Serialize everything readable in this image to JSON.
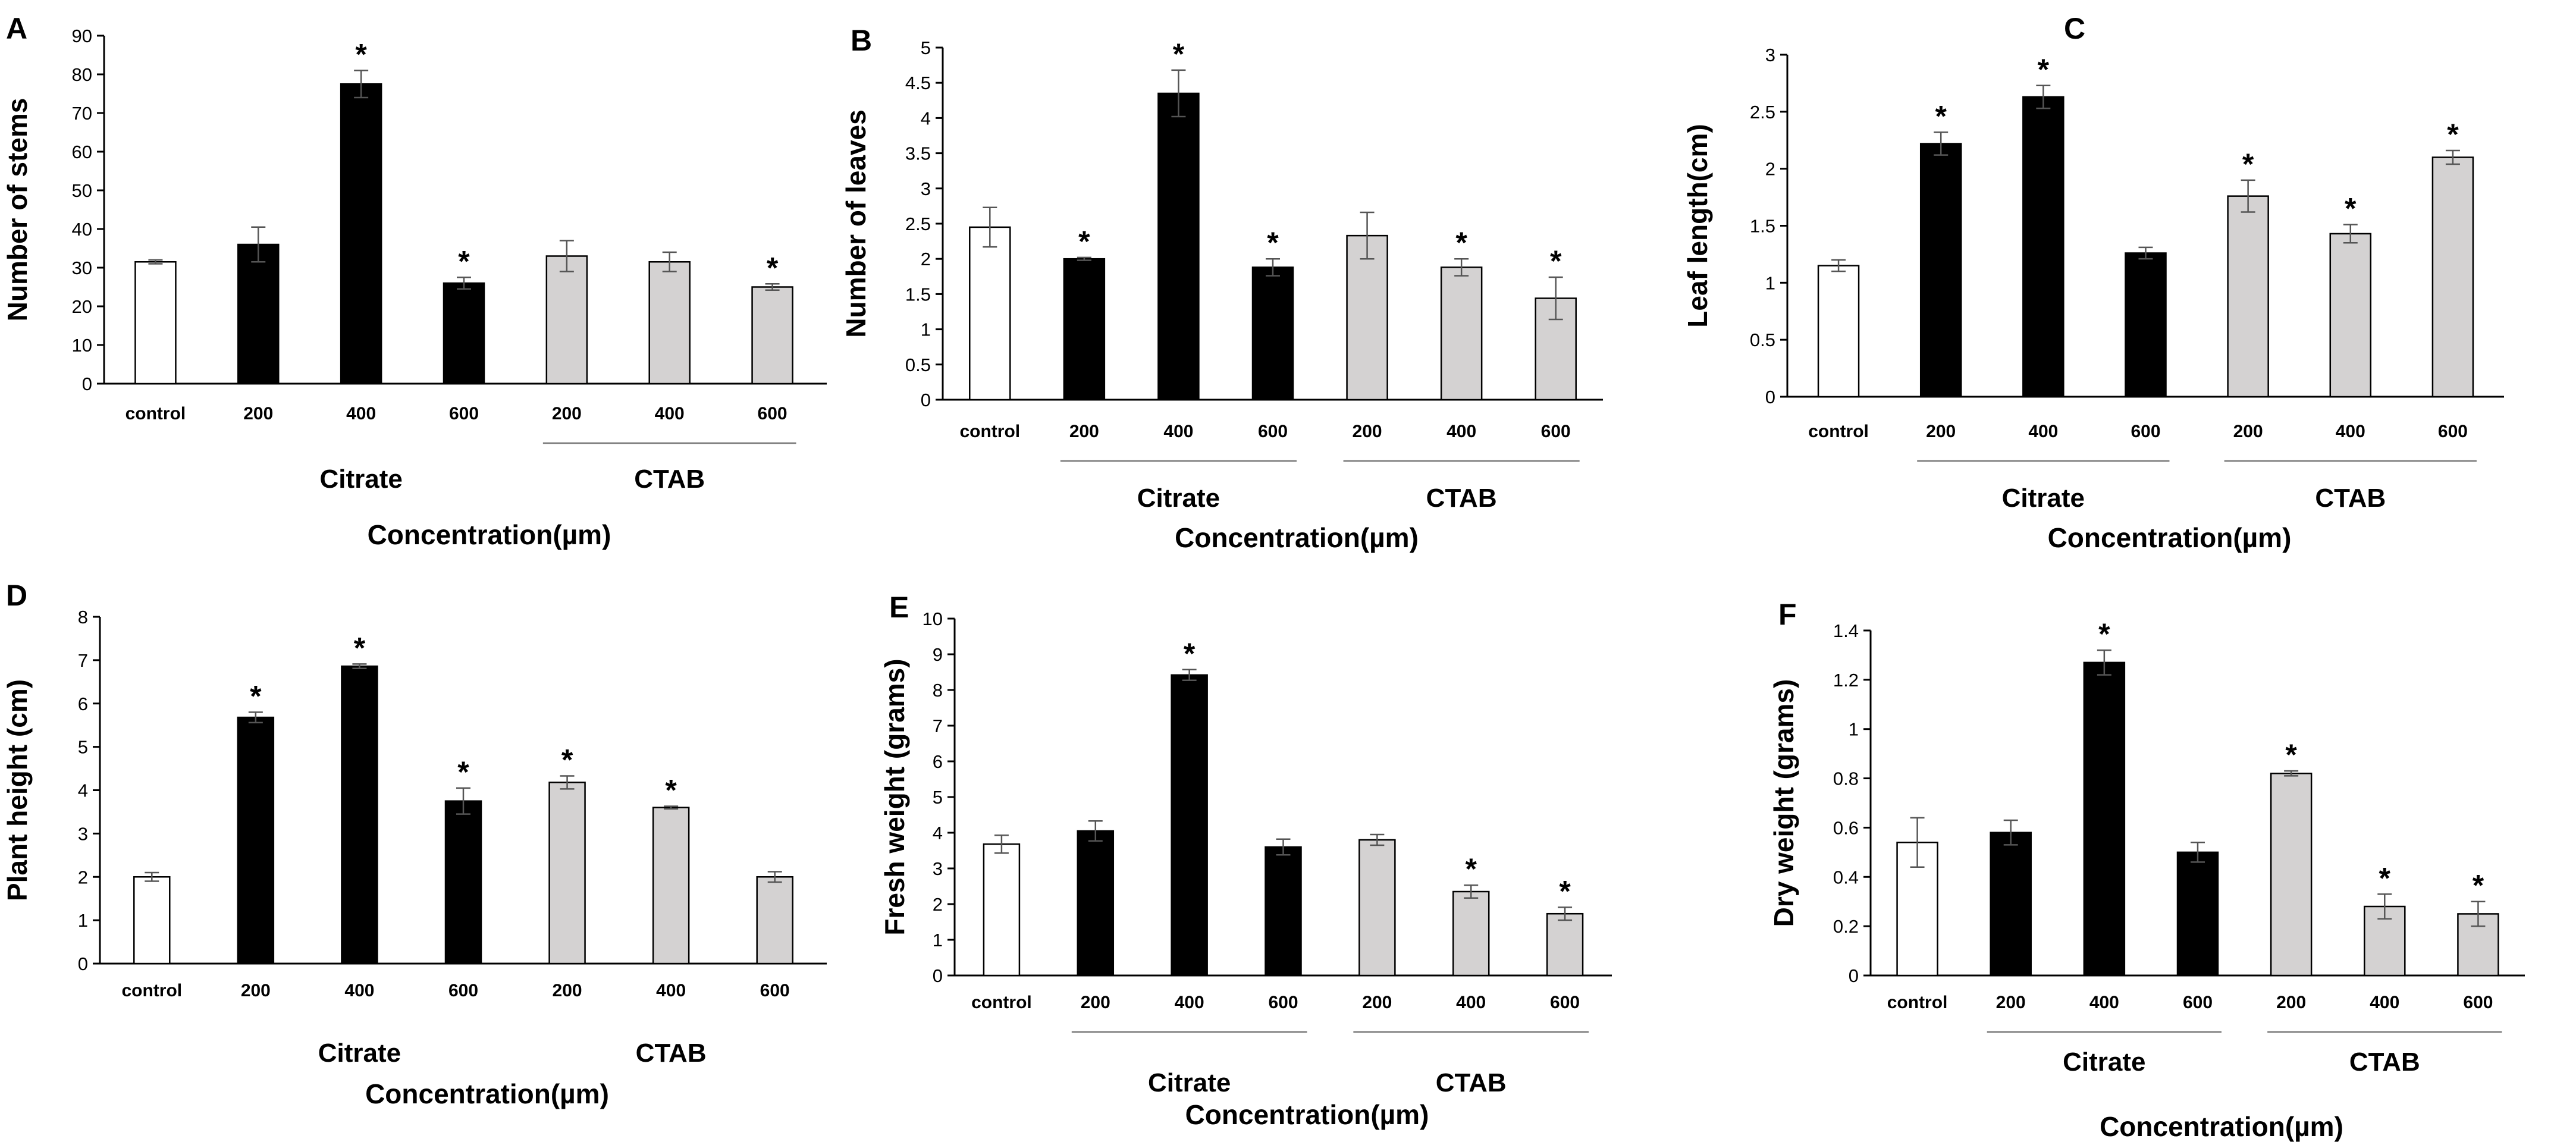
{
  "figure": {
    "colors": {
      "control": "#ffffff",
      "citrate": "#000000",
      "ctab": "#d4d2d2"
    },
    "group_labels": {
      "citrate": "Citrate",
      "ctab": "CTAB"
    }
  },
  "chart_data": [
    {
      "panel": "A",
      "type": "bar",
      "title": "",
      "ylabel": "Number of stems",
      "xlabel": "Concentration(µm)",
      "ylim": [
        0,
        90
      ],
      "yticks": [
        0,
        10,
        20,
        30,
        40,
        50,
        60,
        70,
        80,
        90
      ],
      "categories": [
        "control",
        "200",
        "400",
        "600",
        "200",
        "400",
        "600"
      ],
      "groups": [
        "control",
        "citrate",
        "citrate",
        "citrate",
        "ctab",
        "ctab",
        "ctab"
      ],
      "values": [
        31.5,
        36,
        77.5,
        26,
        33,
        31.5,
        25
      ],
      "errors": [
        0.5,
        4.5,
        3.5,
        1.5,
        4,
        2.5,
        0.8
      ],
      "significant": [
        false,
        false,
        true,
        true,
        false,
        false,
        true
      ],
      "sig_marker": "*",
      "group_labels": [
        "Citrate",
        "CTAB"
      ]
    },
    {
      "panel": "B",
      "type": "bar",
      "title": "",
      "ylabel": "Number of leaves",
      "xlabel": "Concentration(µm)",
      "ylim": [
        0,
        5
      ],
      "yticks": [
        0,
        0.5,
        1,
        1.5,
        2,
        2.5,
        3,
        3.5,
        4,
        4.5,
        5
      ],
      "categories": [
        "control",
        "200",
        "400",
        "600",
        "200",
        "400",
        "600"
      ],
      "groups": [
        "control",
        "citrate",
        "citrate",
        "citrate",
        "ctab",
        "ctab",
        "ctab"
      ],
      "values": [
        2.45,
        2.0,
        4.35,
        1.88,
        2.33,
        1.88,
        1.44
      ],
      "errors": [
        0.28,
        0.02,
        0.33,
        0.12,
        0.33,
        0.12,
        0.3
      ],
      "significant": [
        false,
        true,
        true,
        true,
        false,
        true,
        true
      ],
      "sig_marker": "*",
      "group_labels": [
        "Citrate",
        "CTAB"
      ]
    },
    {
      "panel": "C",
      "type": "bar",
      "title": "",
      "ylabel": "Leaf length(cm)",
      "xlabel": "Concentration(µm)",
      "ylim": [
        0,
        3
      ],
      "yticks": [
        0,
        0.5,
        1,
        1.5,
        2,
        2.5,
        3
      ],
      "categories": [
        "control",
        "200",
        "400",
        "600",
        "200",
        "400",
        "600"
      ],
      "groups": [
        "control",
        "citrate",
        "citrate",
        "citrate",
        "ctab",
        "ctab",
        "ctab"
      ],
      "values": [
        1.15,
        2.22,
        2.63,
        1.26,
        1.76,
        1.43,
        2.1
      ],
      "errors": [
        0.05,
        0.1,
        0.1,
        0.05,
        0.14,
        0.08,
        0.06
      ],
      "significant": [
        false,
        true,
        true,
        false,
        true,
        true,
        true
      ],
      "sig_marker": "*",
      "group_labels": [
        "Citrate",
        "CTAB"
      ]
    },
    {
      "panel": "D",
      "type": "bar",
      "title": "",
      "ylabel": "Plant height (cm)",
      "xlabel": "Concentration(µm)",
      "ylim": [
        0,
        8
      ],
      "yticks": [
        0,
        1,
        2,
        3,
        4,
        5,
        6,
        7,
        8
      ],
      "categories": [
        "control",
        "200",
        "400",
        "600",
        "200",
        "400",
        "600"
      ],
      "groups": [
        "control",
        "citrate",
        "citrate",
        "citrate",
        "ctab",
        "ctab",
        "ctab"
      ],
      "values": [
        2.0,
        5.68,
        6.86,
        3.75,
        4.18,
        3.6,
        2.0
      ],
      "errors": [
        0.1,
        0.12,
        0.05,
        0.3,
        0.15,
        0.03,
        0.12
      ],
      "significant": [
        false,
        true,
        true,
        true,
        true,
        true,
        false
      ],
      "sig_marker": "*",
      "group_labels": [
        "Citrate",
        "CTAB"
      ]
    },
    {
      "panel": "E",
      "type": "bar",
      "title": "",
      "ylabel": "Fresh weight (grams)",
      "xlabel": "Concentration(µm)",
      "ylim": [
        0,
        10
      ],
      "yticks": [
        0,
        1,
        2,
        3,
        4,
        5,
        6,
        7,
        8,
        9,
        10
      ],
      "categories": [
        "control",
        "200",
        "400",
        "600",
        "200",
        "400",
        "600"
      ],
      "groups": [
        "control",
        "citrate",
        "citrate",
        "citrate",
        "ctab",
        "ctab",
        "ctab"
      ],
      "values": [
        3.68,
        4.05,
        8.42,
        3.6,
        3.8,
        2.35,
        1.73
      ],
      "errors": [
        0.25,
        0.28,
        0.15,
        0.22,
        0.15,
        0.18,
        0.18
      ],
      "significant": [
        false,
        false,
        true,
        false,
        false,
        true,
        true
      ],
      "sig_marker": "*",
      "group_labels": [
        "Citrate",
        "CTAB"
      ]
    },
    {
      "panel": "F",
      "type": "bar",
      "title": "",
      "ylabel": "Dry weight (grams)",
      "xlabel": "Concentration(µm)",
      "ylim": [
        0,
        1.4
      ],
      "yticks": [
        0,
        0.2,
        0.4,
        0.6,
        0.8,
        1,
        1.2,
        1.4
      ],
      "categories": [
        "control",
        "200",
        "400",
        "600",
        "200",
        "400",
        "600"
      ],
      "groups": [
        "control",
        "citrate",
        "citrate",
        "citrate",
        "ctab",
        "ctab",
        "ctab"
      ],
      "values": [
        0.54,
        0.58,
        1.27,
        0.5,
        0.82,
        0.28,
        0.25
      ],
      "errors": [
        0.1,
        0.05,
        0.05,
        0.04,
        0.01,
        0.05,
        0.05
      ],
      "significant": [
        false,
        false,
        true,
        false,
        true,
        true,
        true
      ],
      "sig_marker": "*",
      "group_labels": [
        "Citrate",
        "CTAB"
      ]
    }
  ]
}
